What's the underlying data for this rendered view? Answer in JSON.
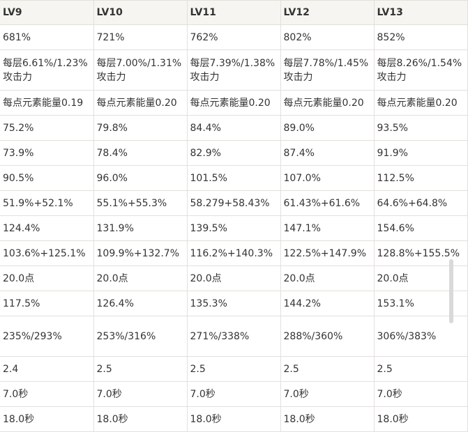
{
  "headers": [
    "LV9",
    "LV10",
    "LV11",
    "LV12",
    "LV13"
  ],
  "rows": [
    {
      "cells": [
        "681%",
        "721%",
        "762%",
        "802%",
        "852%"
      ]
    },
    {
      "cells": [
        "每层6.61%/1.23%攻击力",
        "每层7.00%/1.31%攻击力",
        "每层7.39%/1.38%攻击力",
        "每层7.78%/1.45%攻击力",
        "每层8.26%/1.54%攻击力"
      ]
    },
    {
      "cells": [
        "每点元素能量0.19",
        "每点元素能量0.20",
        "每点元素能量0.20",
        "每点元素能量0.20",
        "每点元素能量0.20"
      ]
    },
    {
      "cells": [
        "75.2%",
        "79.8%",
        "84.4%",
        "89.0%",
        "93.5%"
      ]
    },
    {
      "cells": [
        "73.9%",
        "78.4%",
        "82.9%",
        "87.4%",
        "91.9%"
      ]
    },
    {
      "cells": [
        "90.5%",
        "96.0%",
        "101.5%",
        "107.0%",
        "112.5%"
      ]
    },
    {
      "cells": [
        "51.9%+52.1%",
        "55.1%+55.3%",
        "58.279+58.43%",
        "61.43%+61.6%",
        "64.6%+64.8%"
      ]
    },
    {
      "cells": [
        "124.4%",
        "131.9%",
        "139.5%",
        "147.1%",
        "154.6%"
      ]
    },
    {
      "cells": [
        "103.6%+125.1%",
        "109.9%+132.7%",
        "116.2%+140.3%",
        "122.5%+147.9%",
        "128.8%+155.5%"
      ]
    },
    {
      "cells": [
        "20.0点",
        "20.0点",
        "20.0点",
        "20.0点",
        "20.0点"
      ]
    },
    {
      "cells": [
        "117.5%",
        "126.4%",
        "135.3%",
        "144.2%",
        "153.1%"
      ]
    },
    {
      "cells": [
        "235%/293%",
        "253%/316%",
        "271%/338%",
        "288%/360%",
        "306%/383%"
      ]
    },
    {
      "cells": [
        "2.4",
        "2.5",
        "2.5",
        "2.5",
        "2.5"
      ]
    },
    {
      "cells": [
        "7.0秒",
        "7.0秒",
        "7.0秒",
        "7.0秒",
        "7.0秒"
      ]
    },
    {
      "cells": [
        "18.0秒",
        "18.0秒",
        "18.0秒",
        "18.0秒",
        "18.0秒"
      ]
    }
  ]
}
